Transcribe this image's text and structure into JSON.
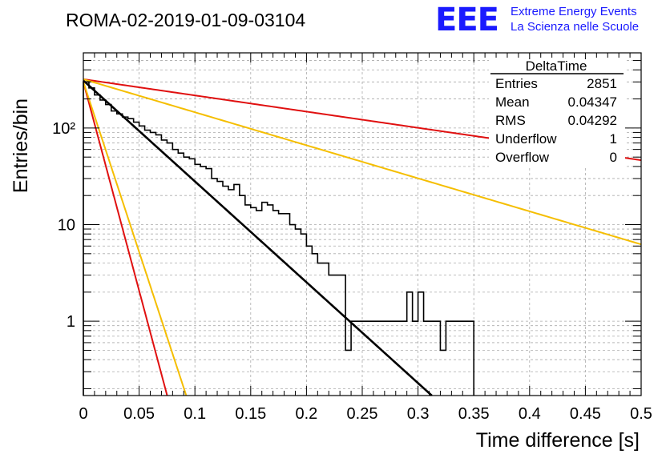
{
  "header": {
    "run_title": "ROMA-02-2019-01-09-03104",
    "logo_text": "EEE",
    "logo_line1": "Extreme Energy Events",
    "logo_line2": "La Scienza nelle Scuole",
    "logo_color": "#1a1aff"
  },
  "stats_box": {
    "title": "DeltaTime",
    "rows": [
      {
        "label": "Entries",
        "value": "2851"
      },
      {
        "label": "Mean",
        "value": "0.04347"
      },
      {
        "label": "RMS",
        "value": "0.04292"
      },
      {
        "label": "Underflow",
        "value": "1"
      },
      {
        "label": "Overflow",
        "value": "0"
      }
    ]
  },
  "chart_data": {
    "type": "line",
    "xlabel": "Time difference [s]",
    "ylabel": "Entries/bin",
    "xlim": [
      0,
      0.5
    ],
    "ylim": [
      0.17,
      600
    ],
    "yscale": "log",
    "grid": true,
    "x_ticks": [
      "0",
      "0.05",
      "0.1",
      "0.15",
      "0.2",
      "0.25",
      "0.3",
      "0.35",
      "0.4",
      "0.45",
      "0.5"
    ],
    "y_ticks": [
      {
        "value": 1,
        "label": "1"
      },
      {
        "value": 10,
        "label": "10"
      },
      {
        "value": 100,
        "label": "10²"
      }
    ],
    "histogram": {
      "bin_width": 0.005,
      "x_start": 0,
      "values": [
        300,
        260,
        220,
        195,
        175,
        150,
        140,
        130,
        125,
        115,
        105,
        95,
        90,
        85,
        75,
        70,
        60,
        55,
        50,
        48,
        42,
        40,
        38,
        30,
        28,
        25,
        23,
        26,
        20,
        16,
        15,
        14,
        17,
        16,
        14,
        13,
        13,
        10,
        9,
        8,
        6,
        5,
        4,
        4,
        3,
        3,
        3,
        0.5,
        1,
        1,
        1,
        1,
        1,
        1,
        1,
        1,
        1,
        1,
        2,
        1,
        2,
        1,
        1,
        1,
        0.5,
        1,
        1,
        1,
        1,
        1
      ]
    },
    "series": [
      {
        "type": "exponential",
        "amplitude": 310,
        "tau": 0.0416,
        "x_end": 0.33,
        "color": "#000000"
      },
      {
        "type": "exponential",
        "amplitude": 320,
        "tau": 0.259,
        "x_end": 0.5,
        "color": "#e01010"
      },
      {
        "type": "exponential",
        "amplitude": 320,
        "tau": 0.127,
        "x_end": 0.5,
        "color": "#f5be00"
      },
      {
        "type": "exponential",
        "amplitude": 300,
        "tau": 0.01005,
        "x_end": 0.08,
        "color": "#e01010"
      },
      {
        "type": "exponential",
        "amplitude": 300,
        "tau": 0.01234,
        "x_end": 0.1,
        "color": "#f5be00"
      }
    ]
  }
}
